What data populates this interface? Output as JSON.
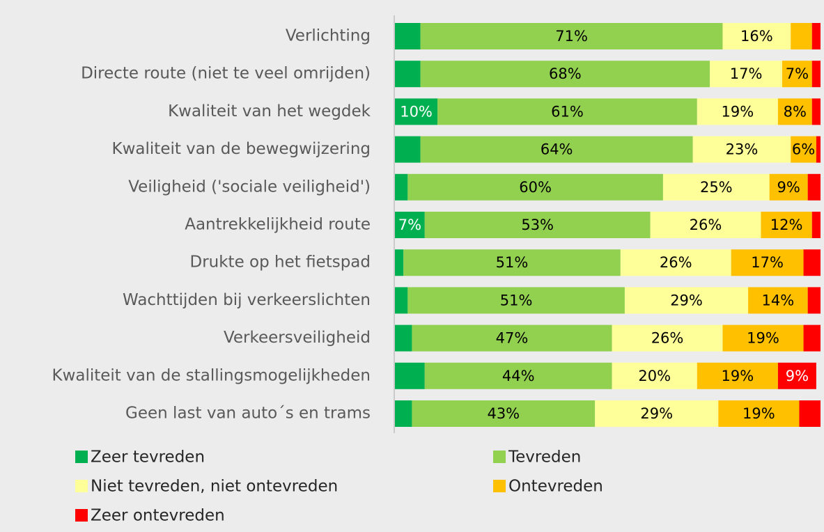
{
  "chart_data": {
    "type": "stacked-bar-horizontal",
    "categories": [
      "Verlichting",
      "Directe route (niet te veel omrijden)",
      "Kwaliteit van het wegdek",
      "Kwaliteit van de bewegwijzering",
      "Veiligheid ('sociale veiligheid')",
      "Aantrekkelijkheid route",
      "Drukte op het fietspad",
      "Wachttijden bij verkeerslichten",
      "Verkeersveiligheid",
      "Kwaliteit van de stallingsmogelijkheden",
      "Geen last van auto´s en trams"
    ],
    "xlim": [
      0,
      100
    ],
    "series": [
      {
        "name": "Zeer tevreden",
        "color": "#00b050",
        "label_color": "#ffffff",
        "values": [
          6,
          6,
          10,
          6,
          3,
          7,
          2,
          3,
          4,
          7,
          4
        ],
        "value_labels": [
          null,
          null,
          "10%",
          null,
          null,
          "7%",
          null,
          null,
          null,
          null,
          null
        ]
      },
      {
        "name": "Tevreden",
        "color": "#92d050",
        "label_color": "#000000",
        "values": [
          71,
          68,
          61,
          64,
          60,
          53,
          51,
          51,
          47,
          44,
          43
        ],
        "value_labels": [
          "71%",
          "68%",
          "61%",
          "64%",
          "60%",
          "53%",
          "51%",
          "51%",
          "47%",
          "44%",
          "43%"
        ]
      },
      {
        "name": "Niet tevreden, niet ontevreden",
        "color": "#ffff99",
        "label_color": "#000000",
        "values": [
          16,
          17,
          19,
          23,
          25,
          26,
          26,
          29,
          26,
          20,
          29
        ],
        "value_labels": [
          "16%",
          "17%",
          "19%",
          "23%",
          "25%",
          "26%",
          "26%",
          "29%",
          "26%",
          "20%",
          "29%"
        ]
      },
      {
        "name": "Ontevreden",
        "color": "#ffc000",
        "label_color": "#000000",
        "values": [
          5,
          7,
          8,
          6,
          9,
          12,
          17,
          14,
          19,
          19,
          19
        ],
        "value_labels": [
          null,
          "7%",
          "8%",
          "6%",
          "9%",
          "12%",
          "17%",
          "14%",
          "19%",
          "19%",
          "19%"
        ]
      },
      {
        "name": "Zeer ontevreden",
        "color": "#ff0000",
        "label_color": "#ffffff",
        "values": [
          2,
          2,
          2,
          1,
          3,
          2,
          4,
          3,
          4,
          9,
          5
        ],
        "value_labels": [
          null,
          null,
          null,
          null,
          null,
          null,
          null,
          null,
          null,
          "9%",
          null
        ]
      }
    ]
  }
}
